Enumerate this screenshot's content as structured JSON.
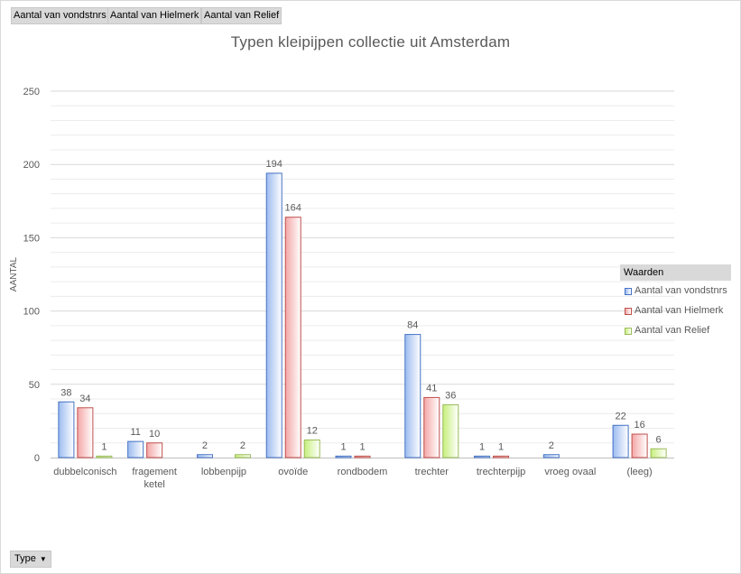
{
  "field_buttons": [
    "Aantal van vondstnrs",
    "Aantal van Hielmerk",
    "Aantal van Relief"
  ],
  "type_button": {
    "label": "Type",
    "icon": "dropdown-arrow-icon"
  },
  "chart_data": {
    "type": "bar",
    "title": "Typen kleipijpen collectie uit Amsterdam",
    "ylabel": "AANTAL",
    "xlabel": "",
    "ylim": [
      0,
      250
    ],
    "yticks": [
      0,
      50,
      100,
      150,
      200,
      250
    ],
    "grid": true,
    "legend_title": "Waarden",
    "legend_position": "right",
    "categories": [
      "dubbelconisch",
      "fragement ketel",
      "lobbenpijp",
      "ovoïde",
      "rondbodem",
      "trechter",
      "trechterpijp",
      "vroeg ovaal",
      "(leeg)"
    ],
    "series": [
      {
        "name": "Aantal van vondstnrs",
        "color": "#4472c4",
        "fill_light": "#ffffff",
        "fill_dark": "#9cbbf0",
        "values": [
          38,
          11,
          2,
          194,
          1,
          84,
          1,
          2,
          22
        ]
      },
      {
        "name": "Aantal van Hielmerk",
        "color": "#c0504d",
        "fill_light": "#ffffff",
        "fill_dark": "#f4a6a6",
        "values": [
          34,
          10,
          null,
          164,
          1,
          41,
          1,
          null,
          16
        ]
      },
      {
        "name": "Aantal van Relief",
        "color": "#9bbb59",
        "fill_light": "#ffffff",
        "fill_dark": "#c6ef7c",
        "values": [
          1,
          null,
          2,
          12,
          null,
          36,
          null,
          null,
          6
        ]
      }
    ]
  }
}
